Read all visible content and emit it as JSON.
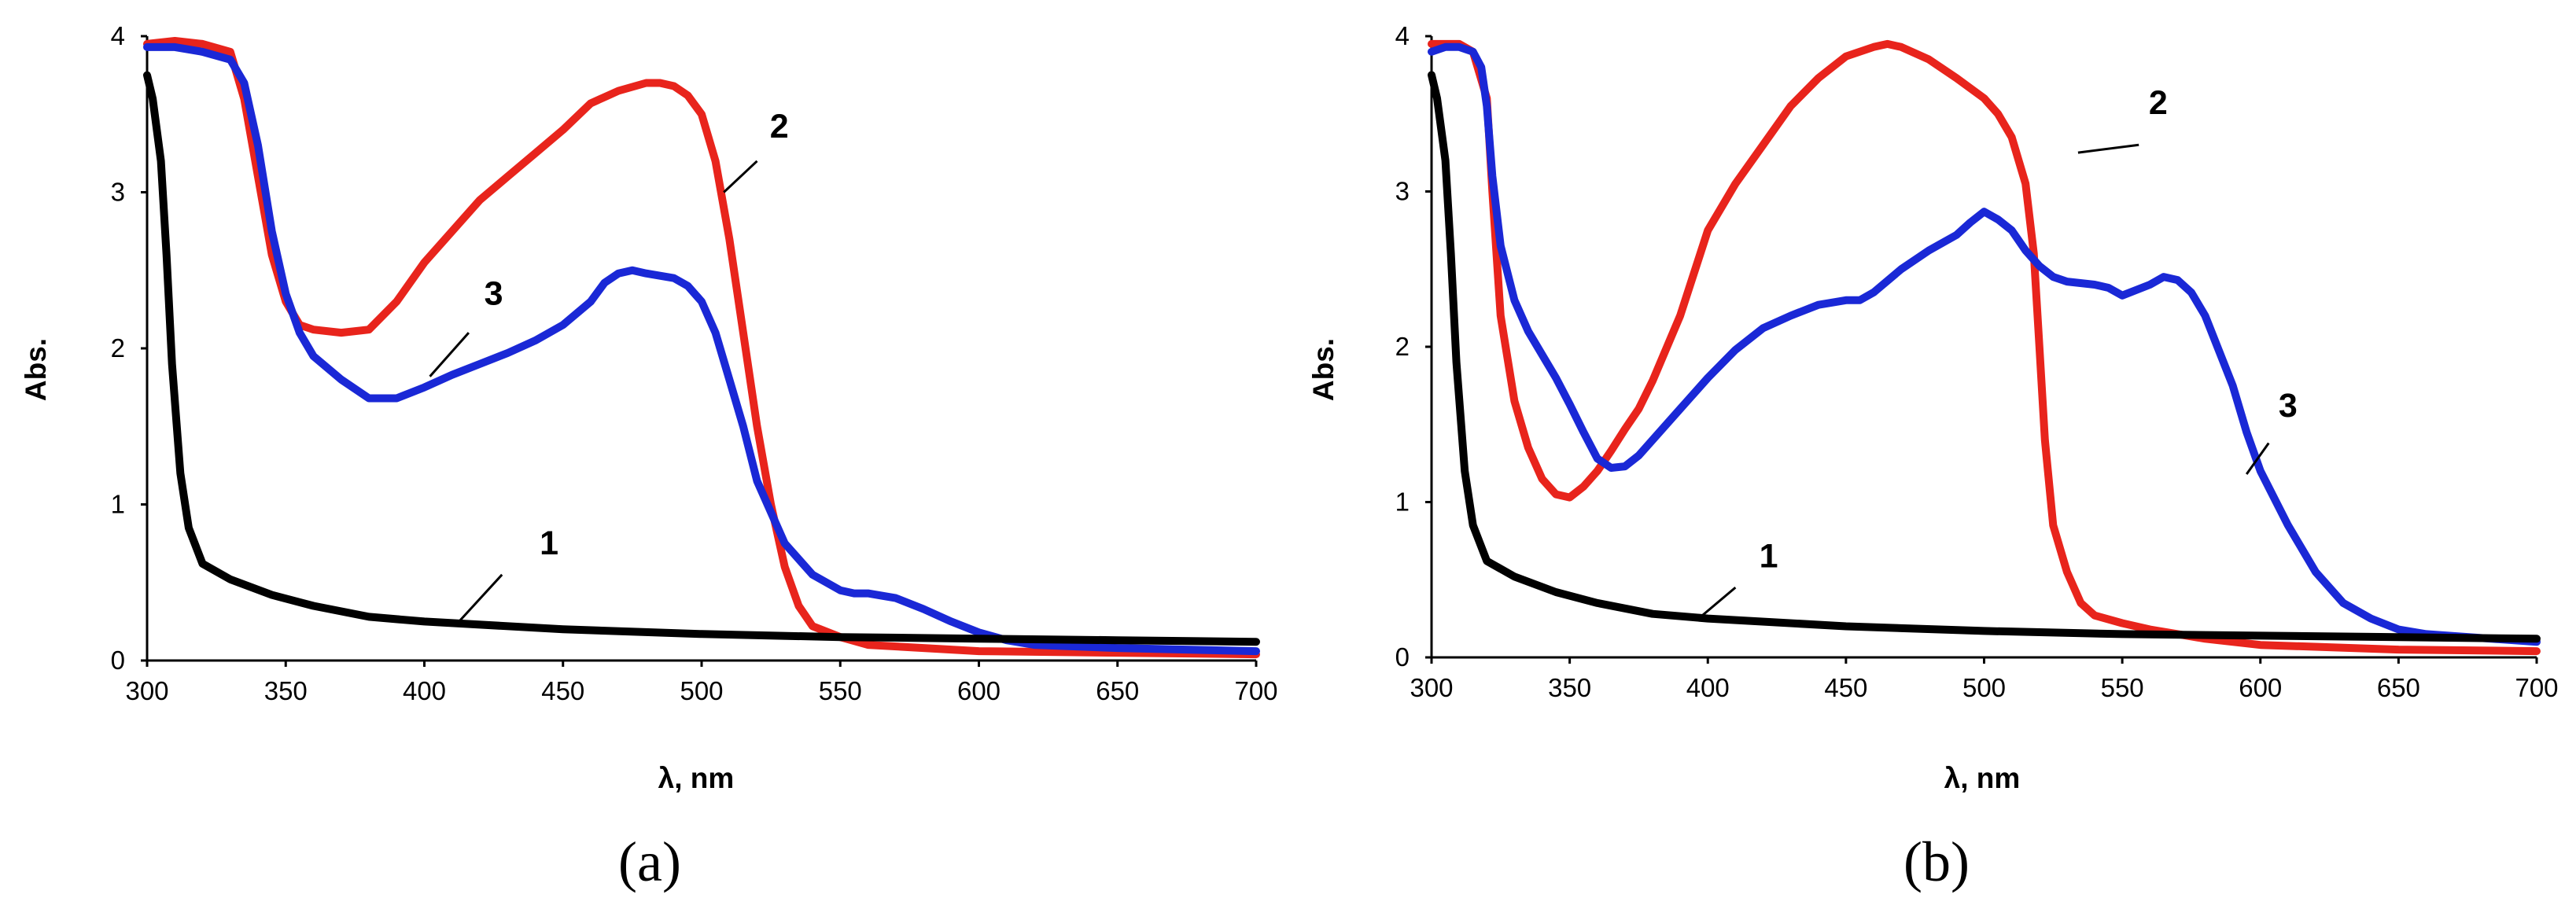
{
  "chart_data": [
    {
      "type": "line",
      "panel_label": "(a)",
      "xlabel": "λ, nm",
      "ylabel": "Abs.",
      "xlim": [
        300,
        700
      ],
      "ylim": [
        0,
        4
      ],
      "xticks": [
        300,
        350,
        400,
        450,
        500,
        550,
        600,
        650,
        700
      ],
      "yticks": [
        0,
        1,
        2,
        3,
        4
      ],
      "series": [
        {
          "name": "1",
          "color": "#000000",
          "x": [
            300,
            302,
            305,
            307,
            309,
            312,
            315,
            320,
            330,
            345,
            360,
            380,
            400,
            450,
            500,
            550,
            600,
            650,
            700
          ],
          "y": [
            3.75,
            3.6,
            3.2,
            2.6,
            1.9,
            1.2,
            0.85,
            0.62,
            0.52,
            0.42,
            0.35,
            0.28,
            0.25,
            0.2,
            0.17,
            0.15,
            0.14,
            0.13,
            0.12
          ],
          "label_x": 445,
          "label_y": 0.68,
          "leader": [
            [
              428,
              0.55
            ],
            [
              412,
              0.24
            ]
          ]
        },
        {
          "name": "2",
          "color": "#e8241c",
          "x": [
            300,
            310,
            320,
            330,
            335,
            340,
            345,
            350,
            355,
            360,
            370,
            380,
            390,
            400,
            410,
            420,
            430,
            440,
            450,
            460,
            470,
            480,
            485,
            490,
            495,
            500,
            505,
            510,
            515,
            520,
            525,
            530,
            535,
            540,
            550,
            560,
            580,
            600,
            650,
            700
          ],
          "y": [
            3.95,
            3.97,
            3.95,
            3.9,
            3.6,
            3.1,
            2.6,
            2.3,
            2.15,
            2.12,
            2.1,
            2.12,
            2.3,
            2.55,
            2.75,
            2.95,
            3.1,
            3.25,
            3.4,
            3.57,
            3.65,
            3.7,
            3.7,
            3.68,
            3.62,
            3.5,
            3.2,
            2.7,
            2.1,
            1.5,
            1.0,
            0.6,
            0.35,
            0.22,
            0.15,
            0.1,
            0.08,
            0.06,
            0.05,
            0.04
          ],
          "label_x": 528,
          "label_y": 3.35,
          "leader": [
            [
              520,
              3.2
            ],
            [
              508,
              3.0
            ]
          ]
        },
        {
          "name": "3",
          "color": "#1a28d6",
          "x": [
            300,
            310,
            320,
            330,
            335,
            340,
            345,
            350,
            355,
            360,
            370,
            380,
            390,
            400,
            410,
            420,
            430,
            440,
            450,
            460,
            465,
            470,
            475,
            480,
            490,
            495,
            500,
            505,
            510,
            515,
            520,
            530,
            540,
            550,
            555,
            560,
            570,
            580,
            590,
            600,
            610,
            620,
            650,
            700
          ],
          "y": [
            3.93,
            3.93,
            3.9,
            3.85,
            3.7,
            3.3,
            2.75,
            2.35,
            2.1,
            1.95,
            1.8,
            1.68,
            1.68,
            1.75,
            1.83,
            1.9,
            1.97,
            2.05,
            2.15,
            2.3,
            2.42,
            2.48,
            2.5,
            2.48,
            2.45,
            2.4,
            2.3,
            2.1,
            1.8,
            1.5,
            1.15,
            0.75,
            0.55,
            0.45,
            0.43,
            0.43,
            0.4,
            0.33,
            0.25,
            0.18,
            0.13,
            0.1,
            0.08,
            0.06
          ],
          "label_x": 425,
          "label_y": 2.28,
          "leader": [
            [
              416,
              2.1
            ],
            [
              402,
              1.82
            ]
          ]
        }
      ]
    },
    {
      "type": "line",
      "panel_label": "(b)",
      "xlabel": "λ, nm",
      "ylabel": "Abs.",
      "xlim": [
        300,
        700
      ],
      "ylim": [
        0,
        4
      ],
      "xticks": [
        300,
        350,
        400,
        450,
        500,
        550,
        600,
        650,
        700
      ],
      "yticks": [
        0,
        1,
        2,
        3,
        4
      ],
      "series": [
        {
          "name": "1",
          "color": "#000000",
          "x": [
            300,
            302,
            305,
            307,
            309,
            312,
            315,
            320,
            330,
            345,
            360,
            380,
            400,
            450,
            500,
            550,
            600,
            650,
            700
          ],
          "y": [
            3.75,
            3.6,
            3.2,
            2.6,
            1.9,
            1.2,
            0.85,
            0.62,
            0.52,
            0.42,
            0.35,
            0.28,
            0.25,
            0.2,
            0.17,
            0.15,
            0.14,
            0.13,
            0.12
          ],
          "label_x": 422,
          "label_y": 0.58,
          "leader": [
            [
              410,
              0.45
            ],
            [
              396,
              0.24
            ]
          ]
        },
        {
          "name": "2",
          "color": "#e8241c",
          "x": [
            300,
            310,
            315,
            320,
            322,
            325,
            330,
            335,
            340,
            345,
            350,
            355,
            360,
            365,
            370,
            375,
            380,
            390,
            400,
            410,
            420,
            430,
            440,
            450,
            460,
            465,
            470,
            480,
            490,
            500,
            505,
            510,
            515,
            518,
            520,
            522,
            525,
            530,
            535,
            540,
            550,
            560,
            580,
            600,
            650,
            700
          ],
          "y": [
            3.95,
            3.95,
            3.9,
            3.6,
            3.0,
            2.2,
            1.65,
            1.35,
            1.15,
            1.05,
            1.03,
            1.1,
            1.2,
            1.33,
            1.47,
            1.6,
            1.78,
            2.2,
            2.75,
            3.05,
            3.3,
            3.55,
            3.73,
            3.87,
            3.93,
            3.95,
            3.93,
            3.85,
            3.73,
            3.6,
            3.5,
            3.35,
            3.05,
            2.6,
            2.0,
            1.4,
            0.85,
            0.55,
            0.35,
            0.27,
            0.22,
            0.18,
            0.12,
            0.08,
            0.05,
            0.04
          ],
          "label_x": 563,
          "label_y": 3.5,
          "leader": [
            [
              556,
              3.3
            ],
            [
              534,
              3.25
            ]
          ]
        },
        {
          "name": "3",
          "color": "#1a28d6",
          "x": [
            300,
            305,
            310,
            315,
            318,
            320,
            322,
            325,
            330,
            335,
            340,
            345,
            350,
            355,
            360,
            365,
            370,
            375,
            380,
            390,
            400,
            410,
            420,
            430,
            440,
            450,
            455,
            460,
            470,
            480,
            490,
            495,
            500,
            505,
            510,
            515,
            520,
            525,
            530,
            540,
            545,
            550,
            560,
            565,
            570,
            575,
            580,
            590,
            595,
            600,
            610,
            620,
            630,
            640,
            650,
            660,
            700
          ],
          "y": [
            3.9,
            3.93,
            3.93,
            3.9,
            3.8,
            3.55,
            3.1,
            2.65,
            2.3,
            2.1,
            1.95,
            1.8,
            1.63,
            1.45,
            1.28,
            1.22,
            1.23,
            1.3,
            1.4,
            1.6,
            1.8,
            1.98,
            2.12,
            2.2,
            2.27,
            2.3,
            2.3,
            2.35,
            2.5,
            2.62,
            2.72,
            2.8,
            2.87,
            2.82,
            2.75,
            2.62,
            2.52,
            2.45,
            2.42,
            2.4,
            2.38,
            2.33,
            2.4,
            2.45,
            2.43,
            2.35,
            2.2,
            1.75,
            1.45,
            1.2,
            0.85,
            0.55,
            0.35,
            0.25,
            0.18,
            0.15,
            0.1
          ],
          "label_x": 610,
          "label_y": 1.55,
          "leader": [
            [
              603,
              1.38
            ],
            [
              595,
              1.18
            ]
          ]
        }
      ]
    }
  ]
}
